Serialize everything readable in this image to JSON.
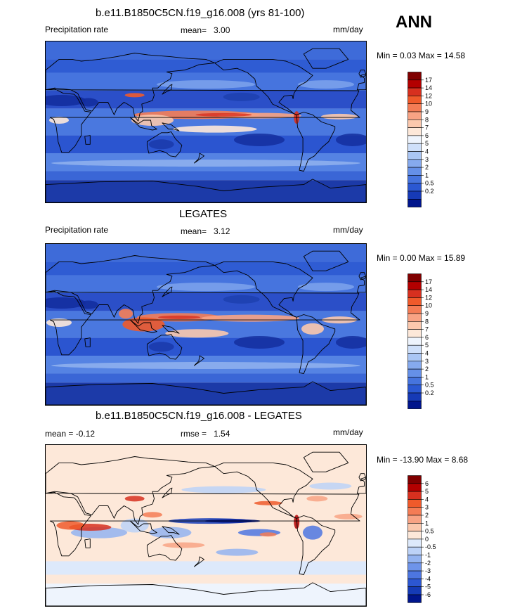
{
  "season": "ANN",
  "panels": [
    {
      "id": "model",
      "title": "b.e11.B1850C5CN.f19_g16.008 (yrs 81-100)",
      "variable": "Precipitation rate",
      "stat_label": "mean=",
      "stat_value": "3.00",
      "units": "mm/day",
      "minmax": "Min =   0.03 Max =  14.58",
      "colorbar_labels": [
        "17",
        "14",
        "12",
        "10",
        "9",
        "8",
        "7",
        "6",
        "5",
        "4",
        "3",
        "2",
        "1",
        "0.5",
        "0.2"
      ],
      "colors": [
        "#800000",
        "#b30000",
        "#d7301f",
        "#ef5a2b",
        "#f47c55",
        "#f8a384",
        "#fbc8ad",
        "#fde8d9",
        "#ffffff",
        "#dce8fb",
        "#b6cdf7",
        "#8fb0f0",
        "#6a92ea",
        "#4a73e0",
        "#2b55d4",
        "#1438b8",
        "#002090"
      ]
    },
    {
      "id": "obs",
      "title": "LEGATES",
      "variable": "Precipitation rate",
      "stat_label": "mean=",
      "stat_value": "3.12",
      "units": "mm/day",
      "minmax": "Min =   0.00 Max =  15.89",
      "colorbar_labels": [
        "17",
        "14",
        "12",
        "10",
        "9",
        "8",
        "7",
        "6",
        "5",
        "4",
        "3",
        "2",
        "1",
        "0.5",
        "0.2"
      ]
    },
    {
      "id": "diff",
      "title": "b.e11.B1850C5CN.f19_g16.008 - LEGATES",
      "stat_label": "mean =",
      "stat_value": "-0.12",
      "rmse_label": "rmse =",
      "rmse_value": "1.54",
      "units": "mm/day",
      "minmax": "Min = -13.90 Max =   8.68",
      "colorbar_labels": [
        "6",
        "5",
        "4",
        "3",
        "2",
        "1",
        "0.5",
        "0",
        "-0.5",
        "-1",
        "-2",
        "-3",
        "-4",
        "-5",
        "-6"
      ]
    }
  ],
  "chart_data": [
    {
      "type": "heatmap",
      "title": "b.e11.B1850C5CN.f19_g16.008 (yrs 81-100)",
      "subtitle": "Precipitation rate",
      "units": "mm/day",
      "mean": 3.0,
      "min": 0.03,
      "max": 14.58,
      "levels": [
        0.2,
        0.5,
        1,
        2,
        3,
        4,
        5,
        6,
        7,
        8,
        9,
        10,
        12,
        14,
        17
      ]
    },
    {
      "type": "heatmap",
      "title": "LEGATES",
      "subtitle": "Precipitation rate",
      "units": "mm/day",
      "mean": 3.12,
      "min": 0.0,
      "max": 15.89,
      "levels": [
        0.2,
        0.5,
        1,
        2,
        3,
        4,
        5,
        6,
        7,
        8,
        9,
        10,
        12,
        14,
        17
      ]
    },
    {
      "type": "heatmap",
      "title": "b.e11.B1850C5CN.f19_g16.008 - LEGATES",
      "units": "mm/day",
      "mean": -0.12,
      "rmse": 1.54,
      "min": -13.9,
      "max": 8.68,
      "levels": [
        -6,
        -5,
        -4,
        -3,
        -2,
        -1,
        -0.5,
        0,
        0.5,
        1,
        2,
        3,
        4,
        5,
        6
      ]
    }
  ],
  "colors": {
    "precip_scale": [
      "#800000",
      "#b30000",
      "#d7301f",
      "#ef5a2b",
      "#f47c55",
      "#f8a384",
      "#fbc8ad",
      "#fde8d9",
      "#eef4fd",
      "#cfe0fa",
      "#aac6f4",
      "#86aaee",
      "#6590e8",
      "#4674de",
      "#2b58d2",
      "#163ab6",
      "#00158c"
    ],
    "diff_scale": [
      "#800000",
      "#b30000",
      "#d7301f",
      "#ef5a2b",
      "#f47c55",
      "#f8a384",
      "#fbc8ad",
      "#fde8d9",
      "#dde9fb",
      "#bcd2f7",
      "#93b3f0",
      "#6e94ea",
      "#4d76e0",
      "#2c57d2",
      "#153bb6",
      "#00158c"
    ]
  }
}
